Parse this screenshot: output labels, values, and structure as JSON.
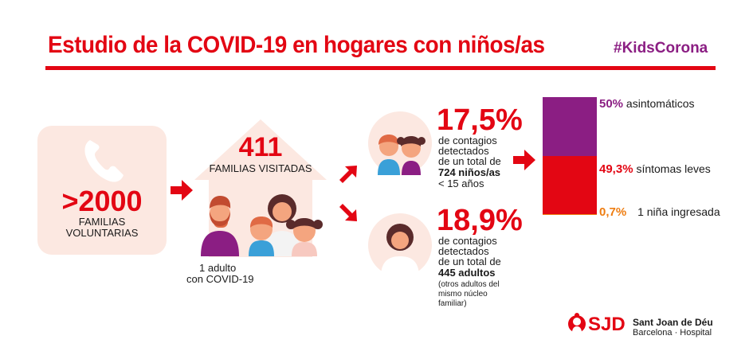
{
  "header": {
    "title": "Estudio de la COVID-19 en hogares con niños/as",
    "hashtag": "#KidsCorona"
  },
  "volunteers": {
    "count": ">2000",
    "label_line1": "FAMILIAS",
    "label_line2": "VOLUNTARIAS"
  },
  "visited": {
    "count": "411",
    "label": "FAMILIAS VISITADAS",
    "caption_line1": "1 adulto",
    "caption_line2": "con COVID-19"
  },
  "children": {
    "percent": "17,5%",
    "line1": "de contagios",
    "line2": "detectados",
    "line3": "de un total de",
    "line4": "724 niños/as",
    "line5": "< 15 años"
  },
  "adults": {
    "percent": "18,9%",
    "line1": "de contagios",
    "line2": "detectados",
    "line3": "de un total de",
    "line4": "445 adultos",
    "note1": "(otros adultos del",
    "note2": "mismo núcleo",
    "note3": "familiar)"
  },
  "chart_data": {
    "type": "bar",
    "title": "",
    "categories": [
      "asintomáticos",
      "síntomas leves",
      "1 niña ingresada"
    ],
    "series": [
      {
        "name": "asintomáticos",
        "value": 50,
        "label": "50%",
        "color": "#8b1e83"
      },
      {
        "name": "síntomas leves",
        "value": 49.3,
        "label": "49,3%",
        "color": "#e30613"
      },
      {
        "name": "1 niña ingresada",
        "value": 0.7,
        "label": "0,7%",
        "color": "#ee7d11"
      }
    ],
    "stacked": true,
    "ylim": [
      0,
      100
    ]
  },
  "brand": {
    "logo_text": "SJD",
    "name_line1": "Sant Joan de Déu",
    "name_line2": "Barcelona · Hospital"
  },
  "colors": {
    "red": "#e30613",
    "purple": "#8b1e83",
    "orange": "#ee7d11",
    "peach": "#fce8e1"
  }
}
